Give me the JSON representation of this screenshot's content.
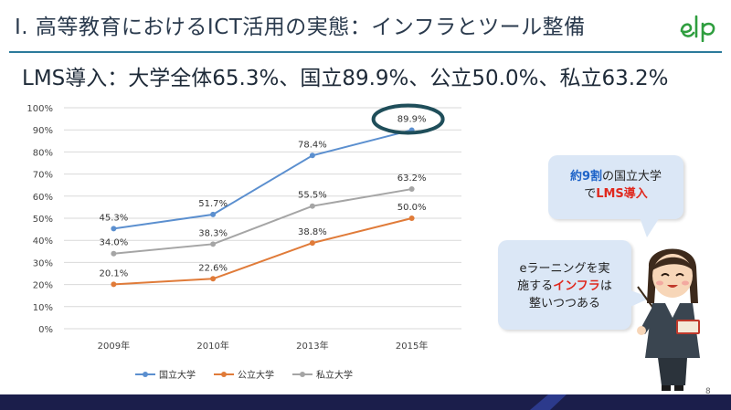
{
  "slide": {
    "title": "I. 高等教育におけるICT活用の実態：インフラとツール整備",
    "subtitle": "LMS導入：大学全体65.3%、国立89.9%、公立50.0%、私立63.2%",
    "page_number": "8",
    "logo_text": "elp",
    "colors": {
      "accent": "#2c7a9b",
      "footer": "#1b1e4b",
      "bubble": "#dbe7f6",
      "highlight": "#1f4e5a"
    }
  },
  "bubble1": {
    "line1_blue": "約9割",
    "line1_rest": "の国立大学",
    "line2_pre": "で",
    "line2_red": "LMS導入"
  },
  "bubble2": {
    "line1": "eラーニングを実",
    "line2_pre": "施する",
    "line2_red": "インフラ",
    "line2_post": "は",
    "line3": "整いつつある"
  },
  "chart_data": {
    "type": "line",
    "categories": [
      "2009年",
      "2010年",
      "2013年",
      "2015年"
    ],
    "series": [
      {
        "name": "国立大学",
        "color": "#5b8fcf",
        "values": [
          45.3,
          51.7,
          78.4,
          89.9
        ],
        "labels": [
          "45.3%",
          "51.7%",
          "78.4%",
          "89.9%"
        ]
      },
      {
        "name": "公立大学",
        "color": "#e07b39",
        "values": [
          20.1,
          22.6,
          38.8,
          50.0
        ],
        "labels": [
          "20.1%",
          "22.6%",
          "38.8%",
          "50.0%"
        ]
      },
      {
        "name": "私立大学",
        "color": "#a5a5a5",
        "values": [
          34.0,
          38.3,
          55.5,
          63.2
        ],
        "labels": [
          "34.0%",
          "38.3%",
          "55.5%",
          "63.2%"
        ]
      }
    ],
    "ylim": [
      0,
      100
    ],
    "yticks": [
      "0%",
      "10%",
      "20%",
      "30%",
      "40%",
      "50%",
      "60%",
      "70%",
      "80%",
      "90%",
      "100%"
    ],
    "grid": true,
    "legend": "bottom",
    "highlight": {
      "series": 0,
      "point": 3
    }
  }
}
